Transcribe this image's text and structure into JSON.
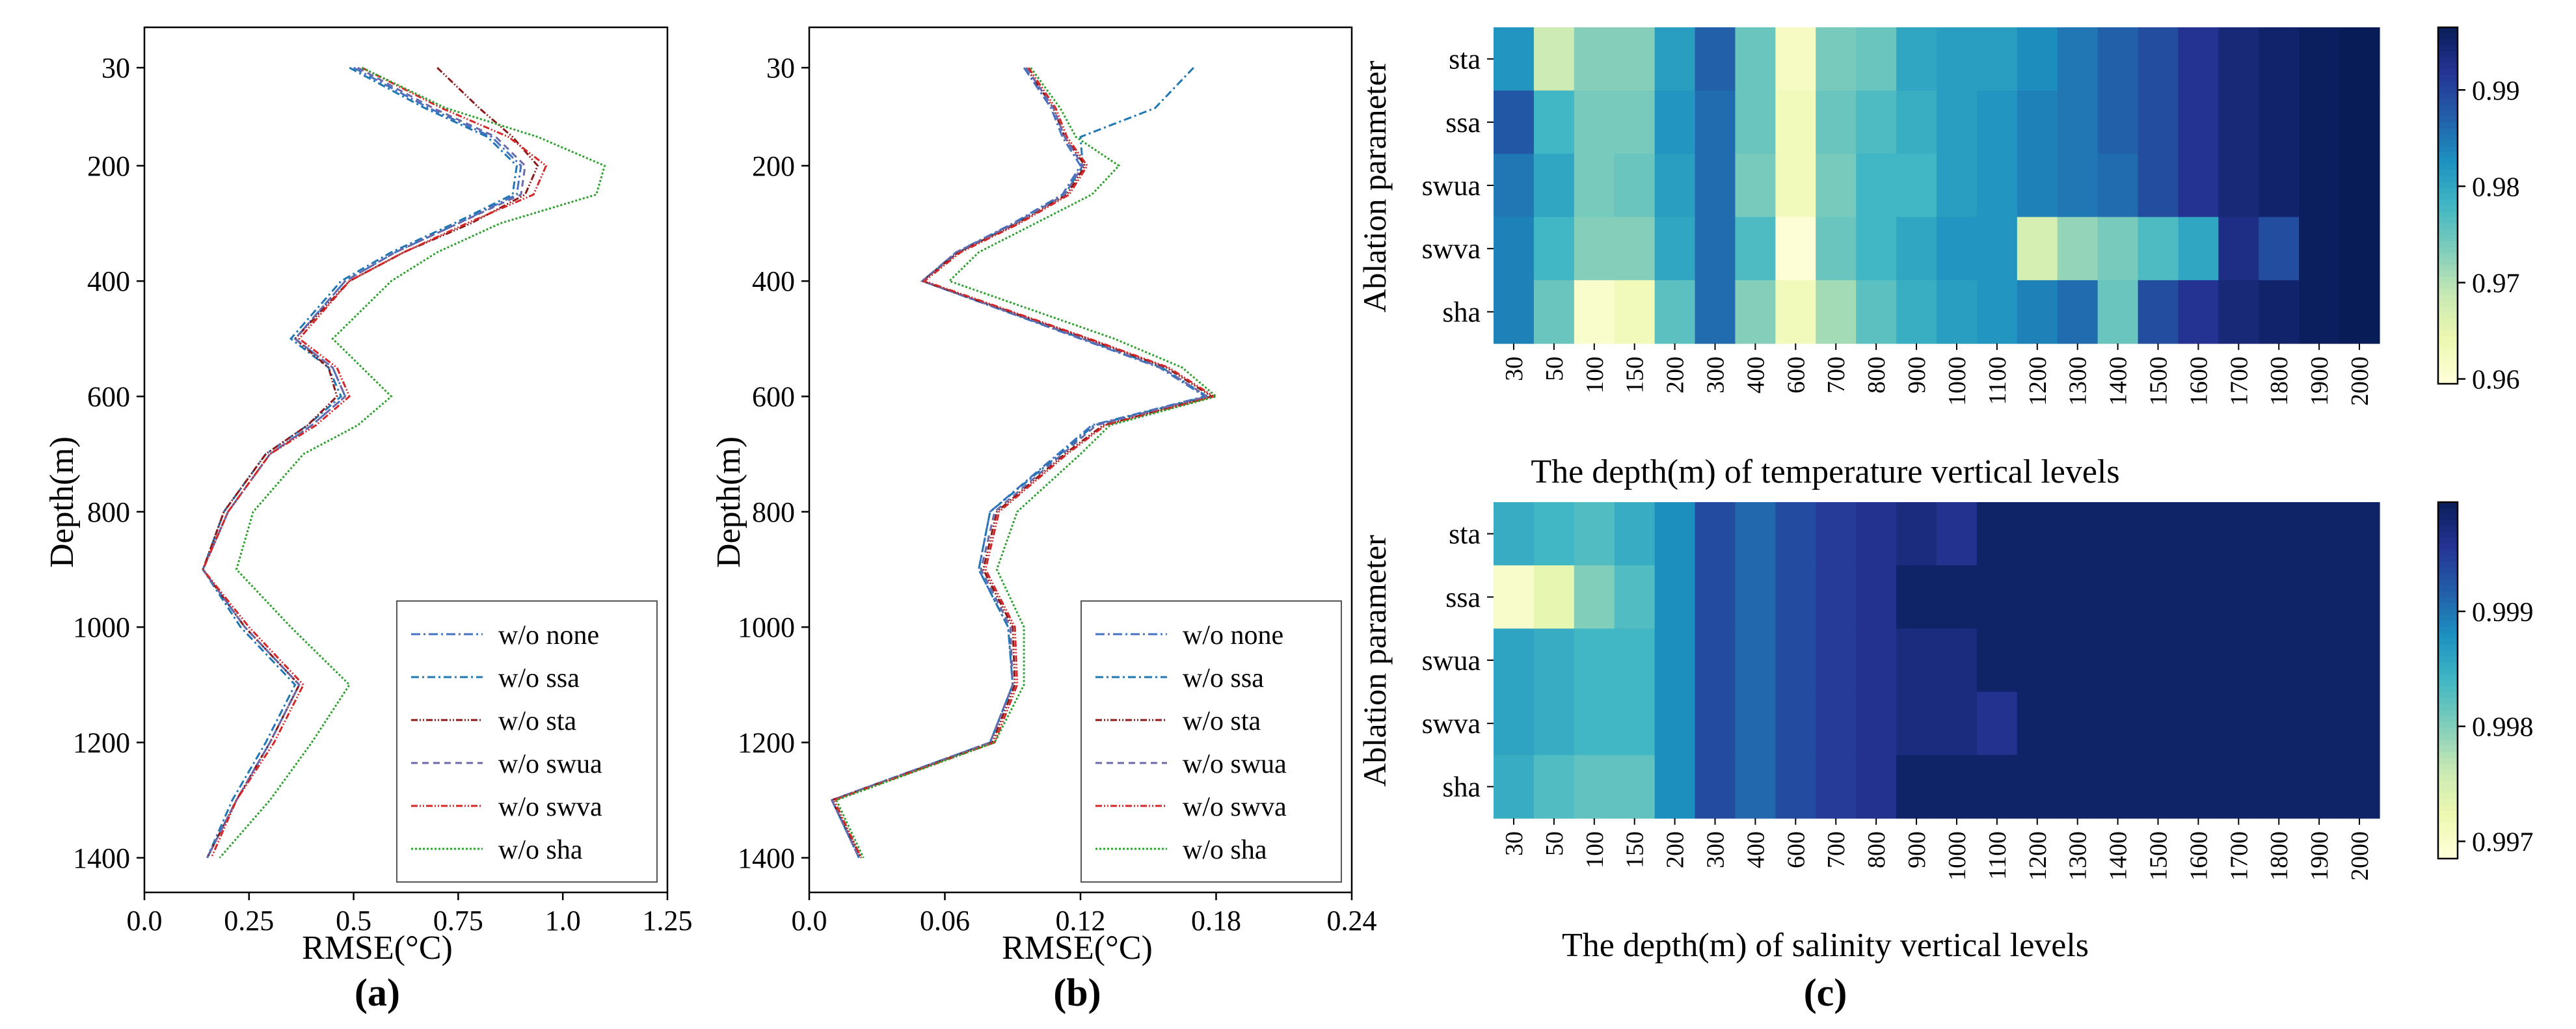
{
  "colors": {
    "none": "#4472c4",
    "ssa": "#1f77b4",
    "sta": "#8b1a1a",
    "swua": "#6a6aa8",
    "swva": "#d62728",
    "sha": "#2ca02c",
    "cmap": [
      "#ffffd9",
      "#edf8b1",
      "#c7e9b4",
      "#7fcdbb",
      "#41b6c4",
      "#1d91c0",
      "#225ea8",
      "#253494",
      "#081d58"
    ]
  },
  "chart_data": [
    {
      "type": "line",
      "panel_label": "(a)",
      "xlabel": "RMSE(°C)",
      "ylabel": "Depth(m)",
      "xlim": [
        0,
        1.25
      ],
      "ylim": [
        1460,
        -40
      ],
      "xticks": [
        "0.0",
        "0.25",
        "0.5",
        "0.75",
        "1.0",
        "1.25"
      ],
      "yticks": [
        "30",
        "200",
        "400",
        "600",
        "800",
        "1000",
        "1200",
        "1400"
      ],
      "depth": [
        30,
        100,
        150,
        200,
        250,
        300,
        350,
        400,
        500,
        550,
        600,
        650,
        700,
        800,
        900,
        1000,
        1100,
        1200,
        1300,
        1400
      ],
      "series": [
        {
          "name": "w/o none",
          "key": "none",
          "dash": "14,5,3,5",
          "values": [
            0.5,
            0.68,
            0.83,
            0.9,
            0.89,
            0.75,
            0.6,
            0.48,
            0.36,
            0.45,
            0.48,
            0.4,
            0.3,
            0.2,
            0.14,
            0.24,
            0.37,
            0.3,
            0.22,
            0.15
          ]
        },
        {
          "name": "w/o ssa",
          "key": "ssa",
          "dash": "12,5,3,5",
          "values": [
            0.49,
            0.67,
            0.82,
            0.89,
            0.88,
            0.74,
            0.59,
            0.47,
            0.35,
            0.44,
            0.47,
            0.39,
            0.29,
            0.19,
            0.14,
            0.23,
            0.36,
            0.29,
            0.21,
            0.15
          ]
        },
        {
          "name": "w/o sta",
          "key": "sta",
          "dash": "10,3,2,3,2,3",
          "values": [
            0.7,
            0.8,
            0.88,
            0.94,
            0.91,
            0.78,
            0.62,
            0.49,
            0.36,
            0.44,
            0.46,
            0.39,
            0.29,
            0.19,
            0.14,
            0.24,
            0.37,
            0.3,
            0.22,
            0.15
          ]
        },
        {
          "name": "w/o swua",
          "key": "swua",
          "dash": "10,7",
          "values": [
            0.51,
            0.69,
            0.84,
            0.91,
            0.9,
            0.75,
            0.6,
            0.48,
            0.36,
            0.45,
            0.48,
            0.4,
            0.3,
            0.2,
            0.14,
            0.24,
            0.37,
            0.3,
            0.22,
            0.15
          ]
        },
        {
          "name": "w/o swva",
          "key": "swva",
          "dash": "10,3,2,3,2,3",
          "values": [
            0.52,
            0.71,
            0.87,
            0.96,
            0.93,
            0.77,
            0.62,
            0.49,
            0.37,
            0.46,
            0.49,
            0.41,
            0.3,
            0.2,
            0.14,
            0.25,
            0.38,
            0.31,
            0.22,
            0.16
          ]
        },
        {
          "name": "w/o sha",
          "key": "sha",
          "dash": "3,3",
          "values": [
            0.52,
            0.72,
            0.94,
            1.1,
            1.08,
            0.85,
            0.7,
            0.59,
            0.45,
            0.52,
            0.59,
            0.51,
            0.38,
            0.26,
            0.22,
            0.35,
            0.49,
            0.4,
            0.3,
            0.18
          ]
        }
      ],
      "legend": "lower-right"
    },
    {
      "type": "line",
      "panel_label": "(b)",
      "xlabel": "RMSE(°C)",
      "ylabel": "Depth(m)",
      "xlim": [
        0,
        0.24
      ],
      "ylim": [
        1460,
        -40
      ],
      "xticks": [
        "0.0",
        "0.06",
        "0.12",
        "0.18",
        "0.24"
      ],
      "yticks": [
        "30",
        "200",
        "400",
        "600",
        "800",
        "1000",
        "1200",
        "1400"
      ],
      "depth": [
        30,
        100,
        150,
        200,
        250,
        300,
        350,
        400,
        500,
        550,
        600,
        650,
        700,
        800,
        900,
        1000,
        1100,
        1200,
        1300,
        1400
      ],
      "series": [
        {
          "name": "w/o none",
          "key": "none",
          "dash": "14,5,3,5",
          "values": [
            0.095,
            0.107,
            0.112,
            0.12,
            0.112,
            0.09,
            0.065,
            0.05,
            0.12,
            0.155,
            0.175,
            0.125,
            0.11,
            0.08,
            0.075,
            0.088,
            0.09,
            0.08,
            0.01,
            0.022
          ]
        },
        {
          "name": "w/o ssa",
          "key": "ssa",
          "dash": "12,5,3,5",
          "values": [
            0.17,
            0.153,
            0.12,
            0.121,
            0.113,
            0.091,
            0.066,
            0.05,
            0.121,
            0.156,
            0.176,
            0.126,
            0.111,
            0.08,
            0.075,
            0.088,
            0.09,
            0.08,
            0.01,
            0.022
          ]
        },
        {
          "name": "w/o sta",
          "key": "sta",
          "dash": "10,3,2,3,2,3",
          "values": [
            0.096,
            0.108,
            0.113,
            0.122,
            0.114,
            0.092,
            0.066,
            0.05,
            0.123,
            0.158,
            0.178,
            0.13,
            0.113,
            0.083,
            0.077,
            0.09,
            0.091,
            0.081,
            0.01,
            0.023
          ]
        },
        {
          "name": "w/o swua",
          "key": "swua",
          "dash": "10,7",
          "values": [
            0.096,
            0.108,
            0.113,
            0.121,
            0.113,
            0.091,
            0.065,
            0.05,
            0.121,
            0.156,
            0.176,
            0.127,
            0.112,
            0.082,
            0.076,
            0.089,
            0.09,
            0.08,
            0.01,
            0.022
          ]
        },
        {
          "name": "w/o swva",
          "key": "swva",
          "dash": "10,3,2,3,2,3",
          "values": [
            0.097,
            0.109,
            0.114,
            0.123,
            0.115,
            0.093,
            0.067,
            0.051,
            0.124,
            0.159,
            0.179,
            0.131,
            0.114,
            0.084,
            0.078,
            0.091,
            0.092,
            0.082,
            0.011,
            0.023
          ]
        },
        {
          "name": "w/o sha",
          "key": "sha",
          "dash": "3,3",
          "values": [
            0.098,
            0.111,
            0.118,
            0.137,
            0.125,
            0.1,
            0.075,
            0.062,
            0.135,
            0.165,
            0.18,
            0.133,
            0.12,
            0.092,
            0.083,
            0.095,
            0.095,
            0.082,
            0.012,
            0.024
          ]
        }
      ],
      "legend": "lower-right"
    },
    {
      "type": "heatmap",
      "panel_label": "(c)",
      "ylabel": "Ablation parameter",
      "xlabel": "The depth(m) of temperature vertical levels",
      "rows": [
        "sta",
        "ssa",
        "swua",
        "swva",
        "sha"
      ],
      "columns": [
        "30",
        "50",
        "100",
        "150",
        "200",
        "300",
        "400",
        "600",
        "700",
        "800",
        "900",
        "1000",
        "1100",
        "1200",
        "1300",
        "1400",
        "1500",
        "1600",
        "1700",
        "1800",
        "1900",
        "2000"
      ],
      "vmin": 0.9595,
      "vmax": 0.9965,
      "colorbar_ticks": [
        0.96,
        0.97,
        0.98,
        0.99
      ],
      "colorbar_labels": [
        "0.96",
        "0.97",
        "0.98",
        "0.99"
      ],
      "values": [
        [
          0.982,
          0.968,
          0.973,
          0.973,
          0.981,
          0.987,
          0.975,
          0.962,
          0.974,
          0.975,
          0.98,
          0.981,
          0.981,
          0.983,
          0.985,
          0.987,
          0.989,
          0.992,
          0.994,
          0.995,
          0.996,
          0.997
        ],
        [
          0.988,
          0.978,
          0.974,
          0.974,
          0.982,
          0.986,
          0.975,
          0.963,
          0.975,
          0.977,
          0.979,
          0.981,
          0.982,
          0.984,
          0.985,
          0.987,
          0.989,
          0.992,
          0.994,
          0.995,
          0.996,
          0.997
        ],
        [
          0.985,
          0.98,
          0.974,
          0.975,
          0.981,
          0.986,
          0.974,
          0.963,
          0.974,
          0.978,
          0.978,
          0.981,
          0.982,
          0.984,
          0.985,
          0.986,
          0.989,
          0.992,
          0.994,
          0.995,
          0.996,
          0.997
        ],
        [
          0.984,
          0.978,
          0.973,
          0.973,
          0.98,
          0.986,
          0.977,
          0.96,
          0.975,
          0.978,
          0.98,
          0.982,
          0.982,
          0.967,
          0.972,
          0.974,
          0.977,
          0.98,
          0.993,
          0.989,
          0.996,
          0.997
        ],
        [
          0.984,
          0.975,
          0.961,
          0.963,
          0.976,
          0.986,
          0.973,
          0.963,
          0.971,
          0.976,
          0.979,
          0.981,
          0.982,
          0.984,
          0.986,
          0.975,
          0.989,
          0.992,
          0.994,
          0.995,
          0.996,
          0.997
        ]
      ]
    },
    {
      "type": "heatmap",
      "ylabel": "Ablation parameter",
      "xlabel": "The depth(m) of salinity vertical levels",
      "rows": [
        "sta",
        "ssa",
        "swua",
        "swva",
        "sha"
      ],
      "columns": [
        "30",
        "50",
        "100",
        "150",
        "200",
        "300",
        "400",
        "600",
        "700",
        "800",
        "900",
        "1000",
        "1100",
        "1200",
        "1300",
        "1400",
        "1500",
        "1600",
        "1700",
        "1800",
        "1900",
        "2000"
      ],
      "vmin": 0.99685,
      "vmax": 0.99995,
      "colorbar_ticks": [
        0.997,
        0.998,
        0.999
      ],
      "colorbar_labels": [
        "0.997",
        "0.998",
        "0.999"
      ],
      "values": [
        [
          0.9985,
          0.9984,
          0.9983,
          0.9985,
          0.9988,
          0.99935,
          0.9991,
          0.99935,
          0.9995,
          0.9996,
          0.9997,
          0.9996,
          0.99985,
          0.99985,
          0.99985,
          0.99985,
          0.99985,
          0.99985,
          0.99985,
          0.99985,
          0.99985,
          0.99985
        ],
        [
          0.997,
          0.9973,
          0.998,
          0.9983,
          0.9988,
          0.99935,
          0.9991,
          0.99935,
          0.9995,
          0.9996,
          0.99985,
          0.99985,
          0.99985,
          0.99985,
          0.99985,
          0.99985,
          0.99985,
          0.99985,
          0.99985,
          0.99985,
          0.99985,
          0.99985
        ],
        [
          0.9986,
          0.9985,
          0.9984,
          0.9984,
          0.9988,
          0.99935,
          0.9991,
          0.99935,
          0.9995,
          0.9996,
          0.9997,
          0.9997,
          0.99985,
          0.99985,
          0.99985,
          0.99985,
          0.99985,
          0.99985,
          0.99985,
          0.99985,
          0.99985,
          0.99985
        ],
        [
          0.9986,
          0.9985,
          0.9984,
          0.9984,
          0.9988,
          0.99935,
          0.9991,
          0.99935,
          0.9995,
          0.9996,
          0.9997,
          0.9997,
          0.9996,
          0.99985,
          0.99985,
          0.99985,
          0.99985,
          0.99985,
          0.99985,
          0.99985,
          0.99985,
          0.99985
        ],
        [
          0.9985,
          0.9983,
          0.9982,
          0.9982,
          0.9988,
          0.99935,
          0.9991,
          0.99935,
          0.9995,
          0.9996,
          0.99985,
          0.99985,
          0.99985,
          0.99985,
          0.99985,
          0.99985,
          0.99985,
          0.99985,
          0.99985,
          0.99985,
          0.99985,
          0.99985
        ]
      ]
    }
  ]
}
